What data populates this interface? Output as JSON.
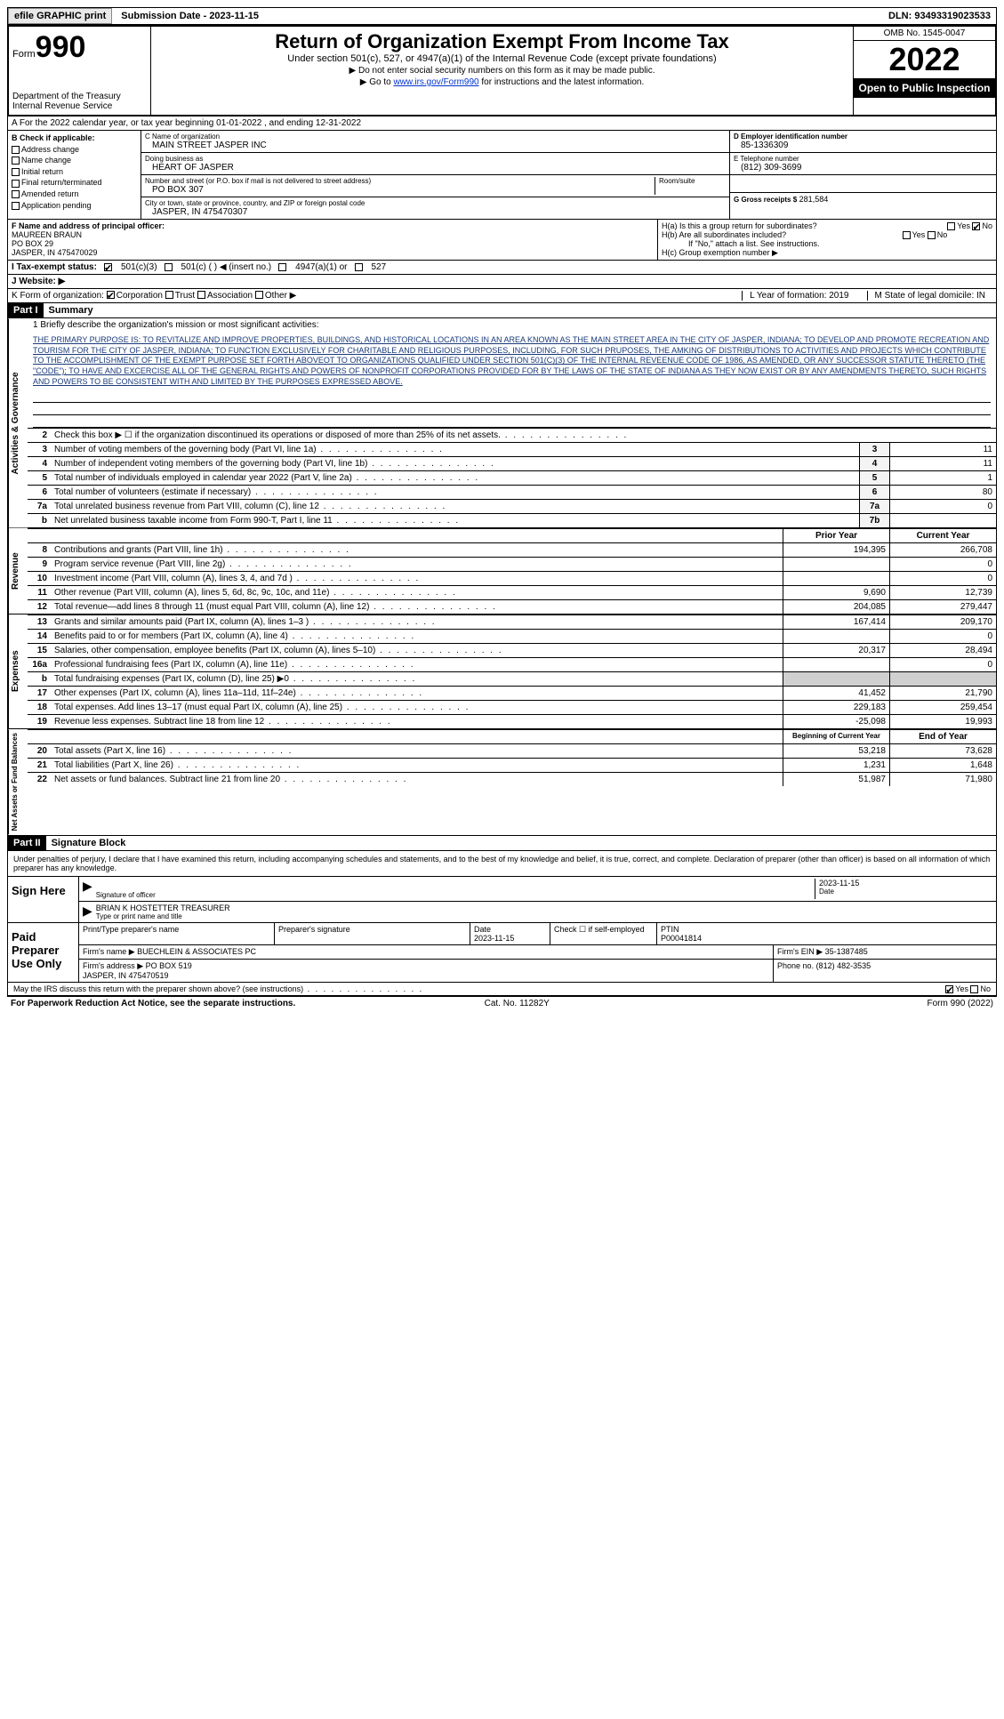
{
  "topbar": {
    "efile": "efile GRAPHIC print",
    "submission": "Submission Date - 2023-11-15",
    "dln": "DLN: 93493319023533"
  },
  "header": {
    "form_label": "Form",
    "form_number": "990",
    "dept": "Department of the Treasury\nInternal Revenue Service",
    "title": "Return of Organization Exempt From Income Tax",
    "subtitle": "Under section 501(c), 527, or 4947(a)(1) of the Internal Revenue Code (except private foundations)",
    "note1": "▶ Do not enter social security numbers on this form as it may be made public.",
    "note2": "▶ Go to ",
    "note2_link": "www.irs.gov/Form990",
    "note2_tail": " for instructions and the latest information.",
    "omb": "OMB No. 1545-0047",
    "year": "2022",
    "inspect": "Open to Public Inspection"
  },
  "rowA": "A For the 2022 calendar year, or tax year beginning 01-01-2022   , and ending 12-31-2022",
  "colB": {
    "title": "B Check if applicable:",
    "items": [
      "Address change",
      "Name change",
      "Initial return",
      "Final return/terminated",
      "Amended return",
      "Application pending"
    ]
  },
  "colC": {
    "name_lbl": "C Name of organization",
    "name": "MAIN STREET JASPER INC",
    "dba_lbl": "Doing business as",
    "dba": "HEART OF JASPER",
    "addr_lbl": "Number and street (or P.O. box if mail is not delivered to street address)",
    "room_lbl": "Room/suite",
    "addr": "PO BOX 307",
    "city_lbl": "City or town, state or province, country, and ZIP or foreign postal code",
    "city": "JASPER, IN  475470307"
  },
  "colD": {
    "lbl": "D Employer identification number",
    "val": "85-1336309"
  },
  "colE": {
    "lbl": "E Telephone number",
    "val": "(812) 309-3699"
  },
  "colG": {
    "lbl": "G Gross receipts $",
    "val": "281,584"
  },
  "colF": {
    "lbl": "F  Name and address of principal officer:",
    "name": "MAUREEN BRAUN",
    "addr1": "PO BOX 29",
    "addr2": "JASPER, IN  475470029"
  },
  "colH": {
    "ha": "H(a)  Is this a group return for subordinates?",
    "hb": "H(b)  Are all subordinates included?",
    "hb_note": "If \"No,\" attach a list. See instructions.",
    "hc": "H(c)  Group exemption number ▶"
  },
  "rowI": {
    "lbl": "I   Tax-exempt status:",
    "opts": [
      "501(c)(3)",
      "501(c) (  ) ◀ (insert no.)",
      "4947(a)(1) or",
      "527"
    ]
  },
  "rowJ": "J  Website: ▶",
  "rowK": {
    "lbl": "K Form of organization:",
    "opts": [
      "Corporation",
      "Trust",
      "Association",
      "Other ▶"
    ],
    "L": "L Year of formation: 2019",
    "M": "M State of legal domicile: IN"
  },
  "part1": {
    "hdr": "Part I",
    "title": "Summary"
  },
  "mission_lbl": "1   Briefly describe the organization's mission or most significant activities:",
  "mission": "THE PRIMARY PURPOSE IS: TO REVITALIZE AND IMPROVE PROPERTIES, BUILDINGS, AND HISTORICAL LOCATIONS IN AN AREA KNOWN AS THE MAIN STREET AREA IN THE CITY OF JASPER, INDIANA; TO DEVELOP AND PROMOTE RECREATION AND TOURISM FOR THE CITY OF JASPER, INDIANA; TO FUNCTION EXCLUSIVELY FOR CHARITABLE AND RELIGIOUS PURPOSES, INCLUDING, FOR SUCH PRUPOSES, THE AMKING OF DISTRIBUTIONS TO ACTIVITIES AND PROJECTS WHICH CONTRIBUTE TO THE ACCOMPLISHMENT OF THE EXEMPT PURPOSE SET FORTH ABOVEOT TO ORGANIZATIONS QUALIFIED UNDER SECTION 501(C)(3) OF THE INTERNAL REVEENUE CODE OF 1986, AS AMENDED, OR ANY SUCCESSOR STATUTE THERETO (THE \"CODE\"); TO HAVE AND EXCERCISE ALL OF THE GENERAL RIGHTS AND POWERS OF NONPROFIT CORPORATIONS PROVIDED FOR BY THE LAWS OF THE STATE OF INDIANA AS THEY NOW EXIST OR BY ANY AMENDMENTS THERETO, SUCH RIGHTS AND POWERS TO BE CONSISTENT WITH AND LIMITED BY THE PURPOSES EXPRESSED ABOVE.",
  "lines_gov": [
    {
      "n": "2",
      "d": "Check this box ▶ ☐ if the organization discontinued its operations or disposed of more than 25% of its net assets.",
      "box": "",
      "v": ""
    },
    {
      "n": "3",
      "d": "Number of voting members of the governing body (Part VI, line 1a)",
      "box": "3",
      "v": "11"
    },
    {
      "n": "4",
      "d": "Number of independent voting members of the governing body (Part VI, line 1b)",
      "box": "4",
      "v": "11"
    },
    {
      "n": "5",
      "d": "Total number of individuals employed in calendar year 2022 (Part V, line 2a)",
      "box": "5",
      "v": "1"
    },
    {
      "n": "6",
      "d": "Total number of volunteers (estimate if necessary)",
      "box": "6",
      "v": "80"
    },
    {
      "n": "7a",
      "d": "Total unrelated business revenue from Part VIII, column (C), line 12",
      "box": "7a",
      "v": "0"
    },
    {
      "n": "b",
      "d": "Net unrelated business taxable income from Form 990-T, Part I, line 11",
      "box": "7b",
      "v": ""
    }
  ],
  "col_headers": {
    "prior": "Prior Year",
    "current": "Current Year"
  },
  "lines_rev": [
    {
      "n": "8",
      "d": "Contributions and grants (Part VIII, line 1h)",
      "p": "194,395",
      "c": "266,708"
    },
    {
      "n": "9",
      "d": "Program service revenue (Part VIII, line 2g)",
      "p": "",
      "c": "0"
    },
    {
      "n": "10",
      "d": "Investment income (Part VIII, column (A), lines 3, 4, and 7d )",
      "p": "",
      "c": "0"
    },
    {
      "n": "11",
      "d": "Other revenue (Part VIII, column (A), lines 5, 6d, 8c, 9c, 10c, and 11e)",
      "p": "9,690",
      "c": "12,739"
    },
    {
      "n": "12",
      "d": "Total revenue—add lines 8 through 11 (must equal Part VIII, column (A), line 12)",
      "p": "204,085",
      "c": "279,447"
    }
  ],
  "lines_exp": [
    {
      "n": "13",
      "d": "Grants and similar amounts paid (Part IX, column (A), lines 1–3 )",
      "p": "167,414",
      "c": "209,170"
    },
    {
      "n": "14",
      "d": "Benefits paid to or for members (Part IX, column (A), line 4)",
      "p": "",
      "c": "0"
    },
    {
      "n": "15",
      "d": "Salaries, other compensation, employee benefits (Part IX, column (A), lines 5–10)",
      "p": "20,317",
      "c": "28,494"
    },
    {
      "n": "16a",
      "d": "Professional fundraising fees (Part IX, column (A), line 11e)",
      "p": "",
      "c": "0"
    },
    {
      "n": "b",
      "d": "Total fundraising expenses (Part IX, column (D), line 25) ▶0",
      "p": "shade",
      "c": "shade"
    },
    {
      "n": "17",
      "d": "Other expenses (Part IX, column (A), lines 11a–11d, 11f–24e)",
      "p": "41,452",
      "c": "21,790"
    },
    {
      "n": "18",
      "d": "Total expenses. Add lines 13–17 (must equal Part IX, column (A), line 25)",
      "p": "229,183",
      "c": "259,454"
    },
    {
      "n": "19",
      "d": "Revenue less expenses. Subtract line 18 from line 12",
      "p": "-25,098",
      "c": "19,993"
    }
  ],
  "col_headers2": {
    "begin": "Beginning of Current Year",
    "end": "End of Year"
  },
  "lines_net": [
    {
      "n": "20",
      "d": "Total assets (Part X, line 16)",
      "p": "53,218",
      "c": "73,628"
    },
    {
      "n": "21",
      "d": "Total liabilities (Part X, line 26)",
      "p": "1,231",
      "c": "1,648"
    },
    {
      "n": "22",
      "d": "Net assets or fund balances. Subtract line 21 from line 20",
      "p": "51,987",
      "c": "71,980"
    }
  ],
  "sidetabs": {
    "gov": "Activities & Governance",
    "rev": "Revenue",
    "exp": "Expenses",
    "net": "Net Assets or Fund Balances"
  },
  "part2": {
    "hdr": "Part II",
    "title": "Signature Block"
  },
  "sig": {
    "intro": "Under penalties of perjury, I declare that I have examined this return, including accompanying schedules and statements, and to the best of my knowledge and belief, it is true, correct, and complete. Declaration of preparer (other than officer) is based on all information of which preparer has any knowledge.",
    "sign_here": "Sign Here",
    "sig_officer": "Signature of officer",
    "date": "Date",
    "date_val": "2023-11-15",
    "officer": "BRIAN K HOSTETTER TREASURER",
    "officer_lbl": "Type or print name and title",
    "paid": "Paid Preparer Use Only",
    "prep_name_lbl": "Print/Type preparer's name",
    "prep_sig_lbl": "Preparer's signature",
    "prep_date": "Date\n2023-11-15",
    "prep_check": "Check ☐ if self-employed",
    "ptin_lbl": "PTIN",
    "ptin": "P00041814",
    "firm_name_lbl": "Firm's name    ▶",
    "firm_name": "BUECHLEIN & ASSOCIATES PC",
    "firm_ein_lbl": "Firm's EIN ▶",
    "firm_ein": "35-1387485",
    "firm_addr_lbl": "Firm's address ▶",
    "firm_addr": "PO BOX 519\nJASPER, IN  475470519",
    "firm_phone_lbl": "Phone no.",
    "firm_phone": "(812) 482-3535",
    "discuss": "May the IRS discuss this return with the preparer shown above? (see instructions)",
    "yes": "Yes",
    "no": "No"
  },
  "footer": {
    "left": "For Paperwork Reduction Act Notice, see the separate instructions.",
    "mid": "Cat. No. 11282Y",
    "right": "Form 990 (2022)"
  }
}
